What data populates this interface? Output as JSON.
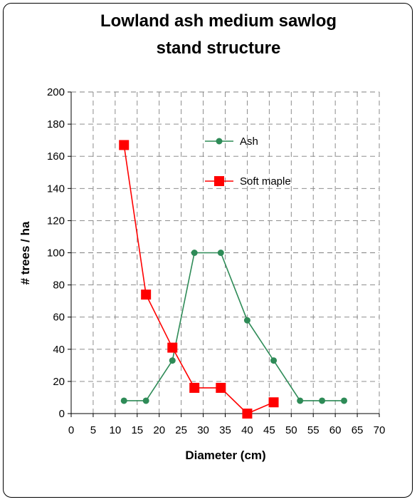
{
  "chart_data": {
    "type": "line",
    "title_lines": [
      "Lowland ash medium sawlog",
      "stand structure"
    ],
    "xlabel": "Diameter (cm)",
    "ylabel": "# trees / ha",
    "xlim": [
      0,
      70
    ],
    "ylim": [
      0,
      200
    ],
    "xticks": [
      0,
      5,
      10,
      15,
      20,
      25,
      30,
      35,
      40,
      45,
      50,
      55,
      60,
      65,
      70
    ],
    "yticks": [
      0,
      20,
      40,
      60,
      80,
      100,
      120,
      140,
      160,
      180,
      200
    ],
    "grid": true,
    "legend_position": "upper-middle",
    "series": [
      {
        "name": "Ash",
        "color": "#2e8b57",
        "marker": "circle",
        "x": [
          12,
          17,
          23,
          28,
          34,
          40,
          46,
          52,
          57,
          62
        ],
        "y": [
          8,
          8,
          33,
          100,
          100,
          58,
          33,
          8,
          8,
          8
        ]
      },
      {
        "name": "Soft maple",
        "color": "#ff0000",
        "marker": "square",
        "x": [
          12,
          17,
          23,
          28,
          34,
          40,
          46
        ],
        "y": [
          167,
          74,
          41,
          16,
          16,
          0,
          7
        ]
      }
    ]
  }
}
